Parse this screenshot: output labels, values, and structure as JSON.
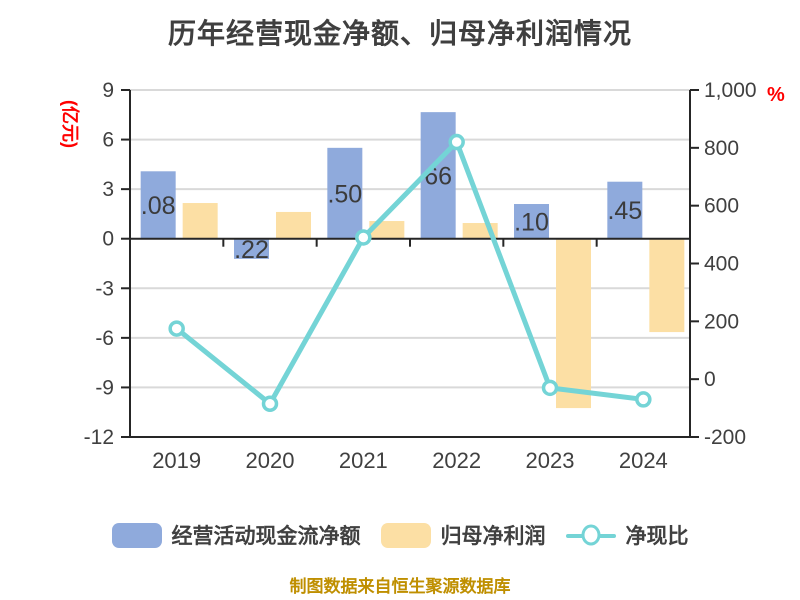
{
  "title": "历年经营现金净额、归母净利润情况",
  "footer": "制图数据来自恒生聚源数据库",
  "axis_units": {
    "left": "(亿元)",
    "right": "%"
  },
  "colors": {
    "bar_cash": "#8faadc",
    "bar_profit": "#fcdfa4",
    "line_ratio": "#74d4d6",
    "axis_line": "#262626",
    "gridline": "#d9d9d9",
    "text": "#404040",
    "unit_label": "#ff0000",
    "footer_text": "#bf8f00"
  },
  "legend": [
    {
      "label": "经营活动现金流净额",
      "swatch": "bar",
      "color": "#8faadc"
    },
    {
      "label": "归母净利润",
      "swatch": "bar",
      "color": "#fcdfa4"
    },
    {
      "label": "净现比",
      "swatch": "line-marker",
      "color": "#74d4d6"
    }
  ],
  "chart_data": {
    "type": "combo",
    "categories": [
      "2019",
      "2020",
      "2021",
      "2022",
      "2023",
      "2024"
    ],
    "series": [
      {
        "name": "经营活动现金流净额",
        "type": "bar",
        "axis": "left",
        "color": "#8faadc",
        "values": [
          4.08,
          -1.22,
          5.5,
          7.66,
          2.1,
          3.45
        ],
        "bar_labels": [
          ".08",
          ".22",
          ".50",
          "66",
          ".10",
          ".45"
        ]
      },
      {
        "name": "归母净利润",
        "type": "bar",
        "axis": "left",
        "color": "#fcdfa4",
        "values": [
          2.16,
          1.62,
          1.07,
          0.95,
          -10.25,
          -5.65
        ],
        "bar_labels": []
      },
      {
        "name": "净现比",
        "type": "line",
        "axis": "right",
        "color": "#74d4d6",
        "marker": "circle",
        "values": [
          175,
          -85,
          490,
          820,
          -30,
          -70
        ]
      }
    ],
    "left_axis": {
      "label": "(亿元)",
      "min": -12,
      "max": 9,
      "step": 3,
      "tick_labels": [
        "9",
        "6",
        "3",
        "0",
        "-3",
        "-6",
        "-9",
        "-12"
      ]
    },
    "right_axis": {
      "label": "%",
      "min": -200,
      "max": 1000,
      "step": 200,
      "tick_labels": [
        "1,000",
        "800",
        "600",
        "400",
        "200",
        "0",
        "-200"
      ]
    },
    "grid": true,
    "legend_position": "bottom"
  }
}
